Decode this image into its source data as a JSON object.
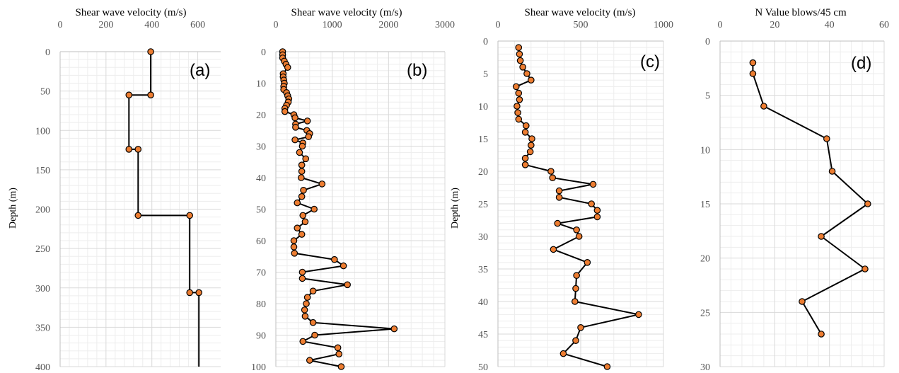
{
  "chart_data": [
    {
      "type": "line",
      "panel": "(a)",
      "title": "Shear wave velocity (m/s)",
      "xlabel": "Shear wave velocity (m/s)",
      "ylabel": "Depth (m)",
      "xlim": [
        0,
        700
      ],
      "ylim": [
        0,
        400
      ],
      "y_reversed": true,
      "x_ticks": [
        0,
        200,
        400,
        600
      ],
      "y_ticks": [
        0,
        50,
        100,
        150,
        200,
        250,
        300,
        350,
        400
      ],
      "x_axis_position": "top",
      "grid": true,
      "series": [
        {
          "points": [
            [
              395,
              0
            ],
            [
              395,
              55
            ],
            [
              300,
              55
            ],
            [
              300,
              124
            ],
            [
              340,
              124
            ],
            [
              340,
              208
            ],
            [
              565,
              208
            ],
            [
              565,
              306
            ],
            [
              605,
              306
            ],
            [
              605,
              400
            ]
          ],
          "markers": [
            [
              395,
              0
            ],
            [
              395,
              55
            ],
            [
              300,
              55
            ],
            [
              300,
              124
            ],
            [
              340,
              124
            ],
            [
              340,
              208
            ],
            [
              565,
              208
            ],
            [
              565,
              306
            ],
            [
              605,
              306
            ]
          ]
        }
      ]
    },
    {
      "type": "line",
      "panel": "(b)",
      "title": "Shear wave velocity (m/s)",
      "xlabel": "Shear wave velocity (m/s)",
      "ylabel": "",
      "xlim": [
        0,
        3000
      ],
      "ylim": [
        0,
        100
      ],
      "y_reversed": true,
      "x_ticks": [
        0,
        1000,
        2000,
        3000
      ],
      "y_ticks": [
        0,
        10,
        20,
        30,
        40,
        50,
        60,
        70,
        80,
        90,
        100
      ],
      "x_axis_position": "top",
      "grid": true,
      "series": [
        {
          "points": [
            [
              120,
              0
            ],
            [
              120,
              1
            ],
            [
              120,
              2
            ],
            [
              150,
              3
            ],
            [
              180,
              4
            ],
            [
              210,
              5
            ],
            [
              130,
              7
            ],
            [
              130,
              8
            ],
            [
              140,
              9
            ],
            [
              150,
              10
            ],
            [
              140,
              11
            ],
            [
              140,
              12
            ],
            [
              190,
              13
            ],
            [
              210,
              14
            ],
            [
              230,
              15
            ],
            [
              220,
              16
            ],
            [
              190,
              17
            ],
            [
              160,
              18
            ],
            [
              160,
              19
            ],
            [
              320,
              20
            ],
            [
              340,
              21
            ],
            [
              560,
              22
            ],
            [
              350,
              23
            ],
            [
              350,
              24
            ],
            [
              550,
              25
            ],
            [
              600,
              26
            ],
            [
              580,
              27
            ],
            [
              340,
              28
            ],
            [
              480,
              29
            ],
            [
              470,
              30
            ],
            [
              420,
              32
            ],
            [
              530,
              34
            ],
            [
              460,
              36
            ],
            [
              460,
              38
            ],
            [
              450,
              40
            ],
            [
              820,
              42
            ],
            [
              490,
              44
            ],
            [
              460,
              46
            ],
            [
              380,
              48
            ],
            [
              680,
              50
            ],
            [
              480,
              52
            ],
            [
              520,
              54
            ],
            [
              380,
              56
            ],
            [
              460,
              58
            ],
            [
              320,
              60
            ],
            [
              320,
              62
            ],
            [
              330,
              64
            ],
            [
              1040,
              66
            ],
            [
              1200,
              68
            ],
            [
              470,
              70
            ],
            [
              470,
              72
            ],
            [
              1270,
              74
            ],
            [
              660,
              76
            ],
            [
              560,
              78
            ],
            [
              540,
              80
            ],
            [
              510,
              82
            ],
            [
              520,
              84
            ],
            [
              660,
              86
            ],
            [
              2100,
              88
            ],
            [
              690,
              90
            ],
            [
              480,
              92
            ],
            [
              1100,
              94
            ],
            [
              1120,
              96
            ],
            [
              600,
              98
            ],
            [
              1160,
              100
            ]
          ]
        }
      ]
    },
    {
      "type": "line",
      "panel": "(c)",
      "title": "Shear wave velocity (m/s)",
      "xlabel": "Shear wave velocity (m/s)",
      "ylabel": "Depth (m)",
      "xlim": [
        0,
        1000
      ],
      "ylim": [
        0,
        50
      ],
      "y_reversed": true,
      "x_ticks": [
        0,
        500,
        1000
      ],
      "y_ticks": [
        0,
        5,
        10,
        15,
        20,
        25,
        30,
        35,
        40,
        45,
        50
      ],
      "x_axis_position": "top",
      "grid": true,
      "series": [
        {
          "points": [
            [
              125,
              1
            ],
            [
              130,
              2
            ],
            [
              135,
              3
            ],
            [
              150,
              4
            ],
            [
              175,
              5
            ],
            [
              200,
              6
            ],
            [
              110,
              7
            ],
            [
              125,
              8
            ],
            [
              130,
              9
            ],
            [
              115,
              10
            ],
            [
              120,
              11
            ],
            [
              125,
              12
            ],
            [
              170,
              13
            ],
            [
              165,
              14
            ],
            [
              205,
              15
            ],
            [
              200,
              16
            ],
            [
              195,
              17
            ],
            [
              165,
              18
            ],
            [
              165,
              19
            ],
            [
              320,
              20
            ],
            [
              330,
              21
            ],
            [
              575,
              22
            ],
            [
              370,
              23
            ],
            [
              370,
              24
            ],
            [
              565,
              25
            ],
            [
              600,
              26
            ],
            [
              600,
              27
            ],
            [
              360,
              28
            ],
            [
              475,
              29
            ],
            [
              490,
              30
            ],
            [
              335,
              32
            ],
            [
              540,
              34
            ],
            [
              475,
              36
            ],
            [
              470,
              38
            ],
            [
              465,
              40
            ],
            [
              850,
              42
            ],
            [
              500,
              44
            ],
            [
              470,
              46
            ],
            [
              395,
              48
            ],
            [
              660,
              50
            ]
          ]
        }
      ]
    },
    {
      "type": "line",
      "panel": "(d)",
      "title": "N Value blows/45 cm",
      "xlabel": "N Value blows/45 cm",
      "ylabel": "",
      "xlim": [
        0,
        60
      ],
      "ylim": [
        0,
        30
      ],
      "y_reversed": true,
      "x_ticks": [
        0,
        20,
        40,
        60
      ],
      "y_ticks": [
        0,
        5,
        10,
        15,
        20,
        25,
        30
      ],
      "x_axis_position": "top",
      "grid": true,
      "series": [
        {
          "points": [
            [
              12,
              2
            ],
            [
              12,
              3
            ],
            [
              16,
              6
            ],
            [
              39,
              9
            ],
            [
              41,
              12
            ],
            [
              54,
              15
            ],
            [
              37,
              18
            ],
            [
              53,
              21
            ],
            [
              30,
              24
            ],
            [
              37,
              27
            ]
          ]
        }
      ]
    }
  ],
  "colors": {
    "marker_fill": "#ED7D31",
    "marker_stroke": "#000000",
    "line": "#000000",
    "grid": "#D9D9D9",
    "axis": "#BFBFBF"
  }
}
